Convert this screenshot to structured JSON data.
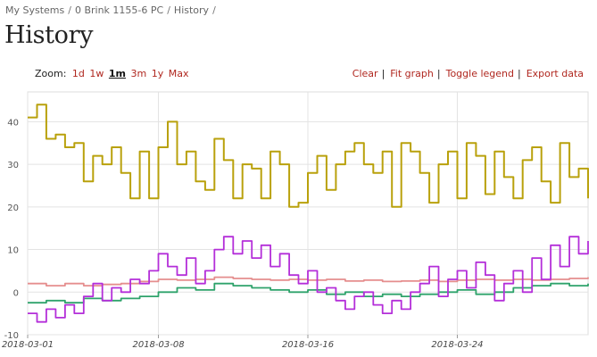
{
  "breadcrumb": {
    "items": [
      "My Systems",
      "0 Brink 1155-6 PC",
      "History"
    ],
    "separator": "/"
  },
  "page": {
    "title": "History"
  },
  "toolbar": {
    "zoom_label": "Zoom:",
    "zoom_options": [
      "1d",
      "1w",
      "1m",
      "3m",
      "1y",
      "Max"
    ],
    "zoom_active": "1m",
    "actions": [
      "Clear",
      "Fit graph",
      "Toggle legend",
      "Export data"
    ]
  },
  "chart_data": {
    "type": "line",
    "title": "",
    "xlabel": "",
    "ylabel": "",
    "xlim": [
      "2018-03-01",
      "2018-03-31"
    ],
    "ylim": [
      -10,
      47
    ],
    "y_ticks": [
      -10,
      0,
      10,
      20,
      30,
      40
    ],
    "x_ticks": [
      "2018-03-01",
      "2018-03-08",
      "2018-03-16",
      "2018-03-24"
    ],
    "grid": true,
    "legend": "hidden",
    "series": [
      {
        "color": "#b9a10c",
        "x": [
          "2018-03-01",
          "2018-03-01T12:00",
          "2018-03-02",
          "2018-03-02T12:00",
          "2018-03-03",
          "2018-03-03T12:00",
          "2018-03-04",
          "2018-03-04T12:00",
          "2018-03-05",
          "2018-03-05T12:00",
          "2018-03-06",
          "2018-03-06T12:00",
          "2018-03-07",
          "2018-03-07T12:00",
          "2018-03-08",
          "2018-03-08T12:00",
          "2018-03-09",
          "2018-03-09T12:00",
          "2018-03-10",
          "2018-03-10T12:00",
          "2018-03-11",
          "2018-03-11T12:00",
          "2018-03-12",
          "2018-03-12T12:00",
          "2018-03-13",
          "2018-03-13T12:00",
          "2018-03-14",
          "2018-03-14T12:00",
          "2018-03-15",
          "2018-03-15T12:00",
          "2018-03-16",
          "2018-03-16T12:00",
          "2018-03-17",
          "2018-03-17T12:00",
          "2018-03-18",
          "2018-03-18T12:00",
          "2018-03-19",
          "2018-03-19T12:00",
          "2018-03-20",
          "2018-03-20T12:00",
          "2018-03-21",
          "2018-03-21T12:00",
          "2018-03-22",
          "2018-03-22T12:00",
          "2018-03-23",
          "2018-03-23T12:00",
          "2018-03-24",
          "2018-03-24T12:00",
          "2018-03-25",
          "2018-03-25T12:00",
          "2018-03-26",
          "2018-03-26T12:00",
          "2018-03-27",
          "2018-03-27T12:00",
          "2018-03-28",
          "2018-03-28T12:00",
          "2018-03-29",
          "2018-03-29T12:00",
          "2018-03-30",
          "2018-03-30T12:00",
          "2018-03-31"
        ],
        "values": [
          41,
          44,
          36,
          37,
          34,
          35,
          26,
          32,
          30,
          34,
          28,
          22,
          33,
          22,
          34,
          40,
          30,
          33,
          26,
          24,
          36,
          31,
          22,
          30,
          29,
          22,
          33,
          30,
          20,
          21,
          28,
          32,
          24,
          30,
          33,
          35,
          30,
          28,
          33,
          20,
          35,
          33,
          28,
          21,
          30,
          33,
          22,
          35,
          32,
          23,
          33,
          27,
          22,
          31,
          34,
          26,
          21,
          35,
          27,
          29,
          22
        ]
      },
      {
        "color": "#e58e8e",
        "x": [
          "2018-03-01",
          "2018-03-02",
          "2018-03-03",
          "2018-03-04",
          "2018-03-05",
          "2018-03-06",
          "2018-03-07",
          "2018-03-08",
          "2018-03-09",
          "2018-03-10",
          "2018-03-11",
          "2018-03-12",
          "2018-03-13",
          "2018-03-14",
          "2018-03-15",
          "2018-03-16",
          "2018-03-17",
          "2018-03-18",
          "2018-03-19",
          "2018-03-20",
          "2018-03-21",
          "2018-03-22",
          "2018-03-23",
          "2018-03-24",
          "2018-03-25",
          "2018-03-26",
          "2018-03-27",
          "2018-03-28",
          "2018-03-29",
          "2018-03-30",
          "2018-03-31"
        ],
        "values": [
          2,
          1.5,
          2,
          1.5,
          1.8,
          2,
          2.5,
          3,
          2.8,
          3,
          3.5,
          3.2,
          3,
          2.8,
          3,
          2.8,
          3,
          2.6,
          2.8,
          2.5,
          2.6,
          2.8,
          2.5,
          2.8,
          3,
          2.8,
          3,
          2.8,
          3,
          3.2,
          3.5
        ]
      },
      {
        "color": "#2fa36b",
        "x": [
          "2018-03-01",
          "2018-03-02",
          "2018-03-03",
          "2018-03-04",
          "2018-03-05",
          "2018-03-06",
          "2018-03-07",
          "2018-03-08",
          "2018-03-09",
          "2018-03-10",
          "2018-03-11",
          "2018-03-12",
          "2018-03-13",
          "2018-03-14",
          "2018-03-15",
          "2018-03-16",
          "2018-03-17",
          "2018-03-18",
          "2018-03-19",
          "2018-03-20",
          "2018-03-21",
          "2018-03-22",
          "2018-03-23",
          "2018-03-24",
          "2018-03-25",
          "2018-03-26",
          "2018-03-27",
          "2018-03-28",
          "2018-03-29",
          "2018-03-30",
          "2018-03-31"
        ],
        "values": [
          -2.5,
          -2,
          -2.5,
          -1.5,
          -2,
          -1.5,
          -1,
          0,
          1,
          0.5,
          2,
          1.5,
          1,
          0.5,
          0,
          0.5,
          -0.5,
          0,
          -1,
          -0.5,
          -1,
          -0.5,
          0,
          0.5,
          -0.5,
          0,
          1,
          1.5,
          2,
          1.5,
          2
        ]
      },
      {
        "color": "#b42fd9",
        "x": [
          "2018-03-01",
          "2018-03-01T12:00",
          "2018-03-02",
          "2018-03-02T12:00",
          "2018-03-03",
          "2018-03-03T12:00",
          "2018-03-04",
          "2018-03-04T12:00",
          "2018-03-05",
          "2018-03-05T12:00",
          "2018-03-06",
          "2018-03-06T12:00",
          "2018-03-07",
          "2018-03-07T12:00",
          "2018-03-08",
          "2018-03-08T12:00",
          "2018-03-09",
          "2018-03-09T12:00",
          "2018-03-10",
          "2018-03-10T12:00",
          "2018-03-11",
          "2018-03-11T12:00",
          "2018-03-12",
          "2018-03-12T12:00",
          "2018-03-13",
          "2018-03-13T12:00",
          "2018-03-14",
          "2018-03-14T12:00",
          "2018-03-15",
          "2018-03-15T12:00",
          "2018-03-16",
          "2018-03-16T12:00",
          "2018-03-17",
          "2018-03-17T12:00",
          "2018-03-18",
          "2018-03-18T12:00",
          "2018-03-19",
          "2018-03-19T12:00",
          "2018-03-20",
          "2018-03-20T12:00",
          "2018-03-21",
          "2018-03-21T12:00",
          "2018-03-22",
          "2018-03-22T12:00",
          "2018-03-23",
          "2018-03-23T12:00",
          "2018-03-24",
          "2018-03-24T12:00",
          "2018-03-25",
          "2018-03-25T12:00",
          "2018-03-26",
          "2018-03-26T12:00",
          "2018-03-27",
          "2018-03-27T12:00",
          "2018-03-28",
          "2018-03-28T12:00",
          "2018-03-29",
          "2018-03-29T12:00",
          "2018-03-30",
          "2018-03-30T12:00",
          "2018-03-31"
        ],
        "values": [
          -5,
          -7,
          -4,
          -6,
          -3,
          -5,
          -1,
          2,
          -2,
          1,
          0,
          3,
          2,
          5,
          9,
          6,
          4,
          8,
          2,
          5,
          10,
          13,
          9,
          12,
          8,
          11,
          6,
          9,
          4,
          2,
          5,
          0,
          1,
          -2,
          -4,
          -1,
          0,
          -3,
          -5,
          -2,
          -4,
          0,
          2,
          6,
          -1,
          3,
          5,
          1,
          7,
          4,
          -2,
          2,
          5,
          0,
          8,
          3,
          11,
          6,
          13,
          9,
          12
        ]
      }
    ]
  }
}
